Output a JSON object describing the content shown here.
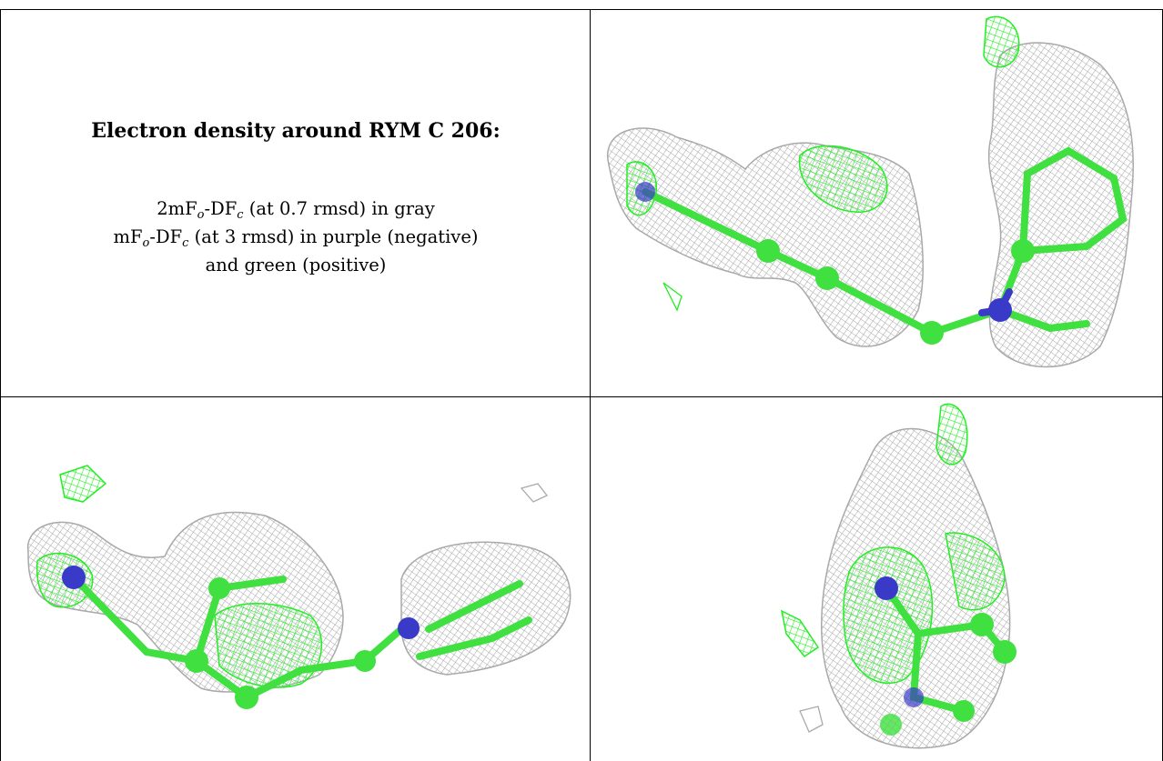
{
  "heading": "Electron density around RYM C 206:",
  "legend": {
    "line1": {
      "pre": "2mF",
      "sub1": "o",
      "mid": "-DF",
      "sub2": "c",
      "post": " (at 0.7 rmsd) in gray"
    },
    "line2": {
      "pre": "mF",
      "sub1": "o",
      "mid": "-DF",
      "sub2": "c",
      "post": " (at 3 rmsd) in purple (negative)"
    },
    "line3": "and green (positive)"
  },
  "colors": {
    "mesh_gray": "#a9a9a9",
    "mesh_green": "#22ee22",
    "atom_carbon": "#3fe03f",
    "atom_nitrogen": "#3a3ac8",
    "border": "#000000"
  },
  "views": [
    {
      "name": "view-top-right"
    },
    {
      "name": "view-bottom-left"
    },
    {
      "name": "view-bottom-right"
    }
  ]
}
